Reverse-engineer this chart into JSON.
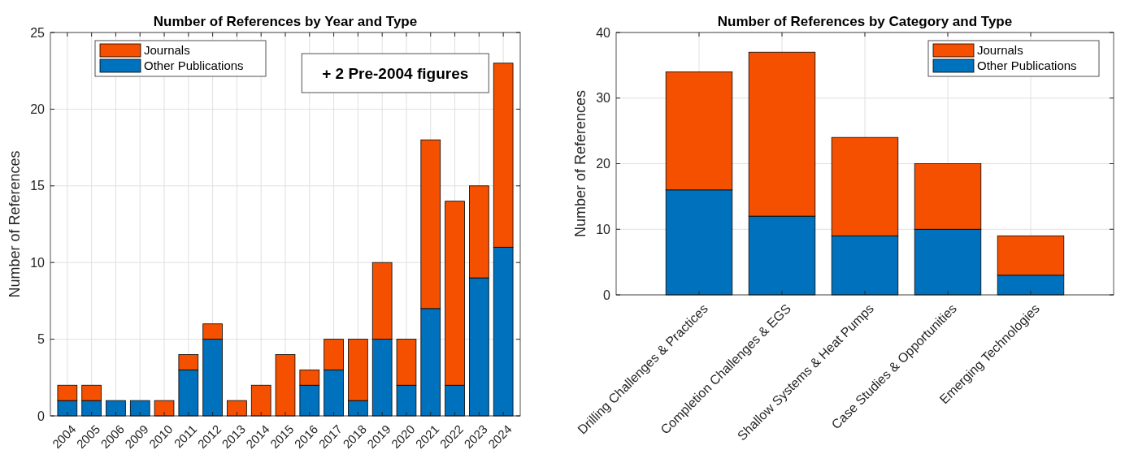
{
  "chart_data": [
    {
      "type": "bar",
      "title": "Number of References by Year and Type",
      "ylabel": "Number of References",
      "categories": [
        "2004",
        "2005",
        "2006",
        "2009",
        "2010",
        "2011",
        "2012",
        "2013",
        "2014",
        "2015",
        "2016",
        "2017",
        "2018",
        "2019",
        "2020",
        "2021",
        "2022",
        "2023",
        "2024"
      ],
      "stacked": true,
      "series": [
        {
          "name": "Other Publications",
          "color": "#0072bd",
          "values": [
            1,
            1,
            1,
            1,
            0,
            3,
            5,
            0,
            0,
            0,
            2,
            3,
            1,
            5,
            2,
            7,
            2,
            9,
            11
          ]
        },
        {
          "name": "Journals",
          "color": "#f55000",
          "values": [
            1,
            1,
            0,
            0,
            1,
            1,
            1,
            1,
            2,
            4,
            1,
            2,
            4,
            5,
            3,
            11,
            12,
            6,
            12
          ]
        }
      ],
      "ylim": [
        0,
        25
      ],
      "yticks": [
        0,
        5,
        10,
        15,
        20,
        25
      ],
      "grid": true,
      "legend": "top left",
      "annotations": [
        "+ 2 Pre-2004 figures"
      ]
    },
    {
      "type": "bar",
      "title": "Number of References by Category and Type",
      "ylabel": "Number of References",
      "categories": [
        "Drilling Challenges & Practices",
        "Completion Challenges & EGS",
        "Shallow Systems & Heat Pumps",
        "Case Studies & Opportunities",
        "Emerging  Technologies"
      ],
      "stacked": true,
      "series": [
        {
          "name": "Other Publications",
          "color": "#0072bd",
          "values": [
            16,
            12,
            9,
            10,
            3
          ]
        },
        {
          "name": "Journals",
          "color": "#f55000",
          "values": [
            18,
            25,
            15,
            10,
            6
          ]
        }
      ],
      "ylim": [
        0,
        40
      ],
      "yticks": [
        0,
        10,
        20,
        30,
        40
      ],
      "grid": true,
      "legend": "top right"
    }
  ]
}
